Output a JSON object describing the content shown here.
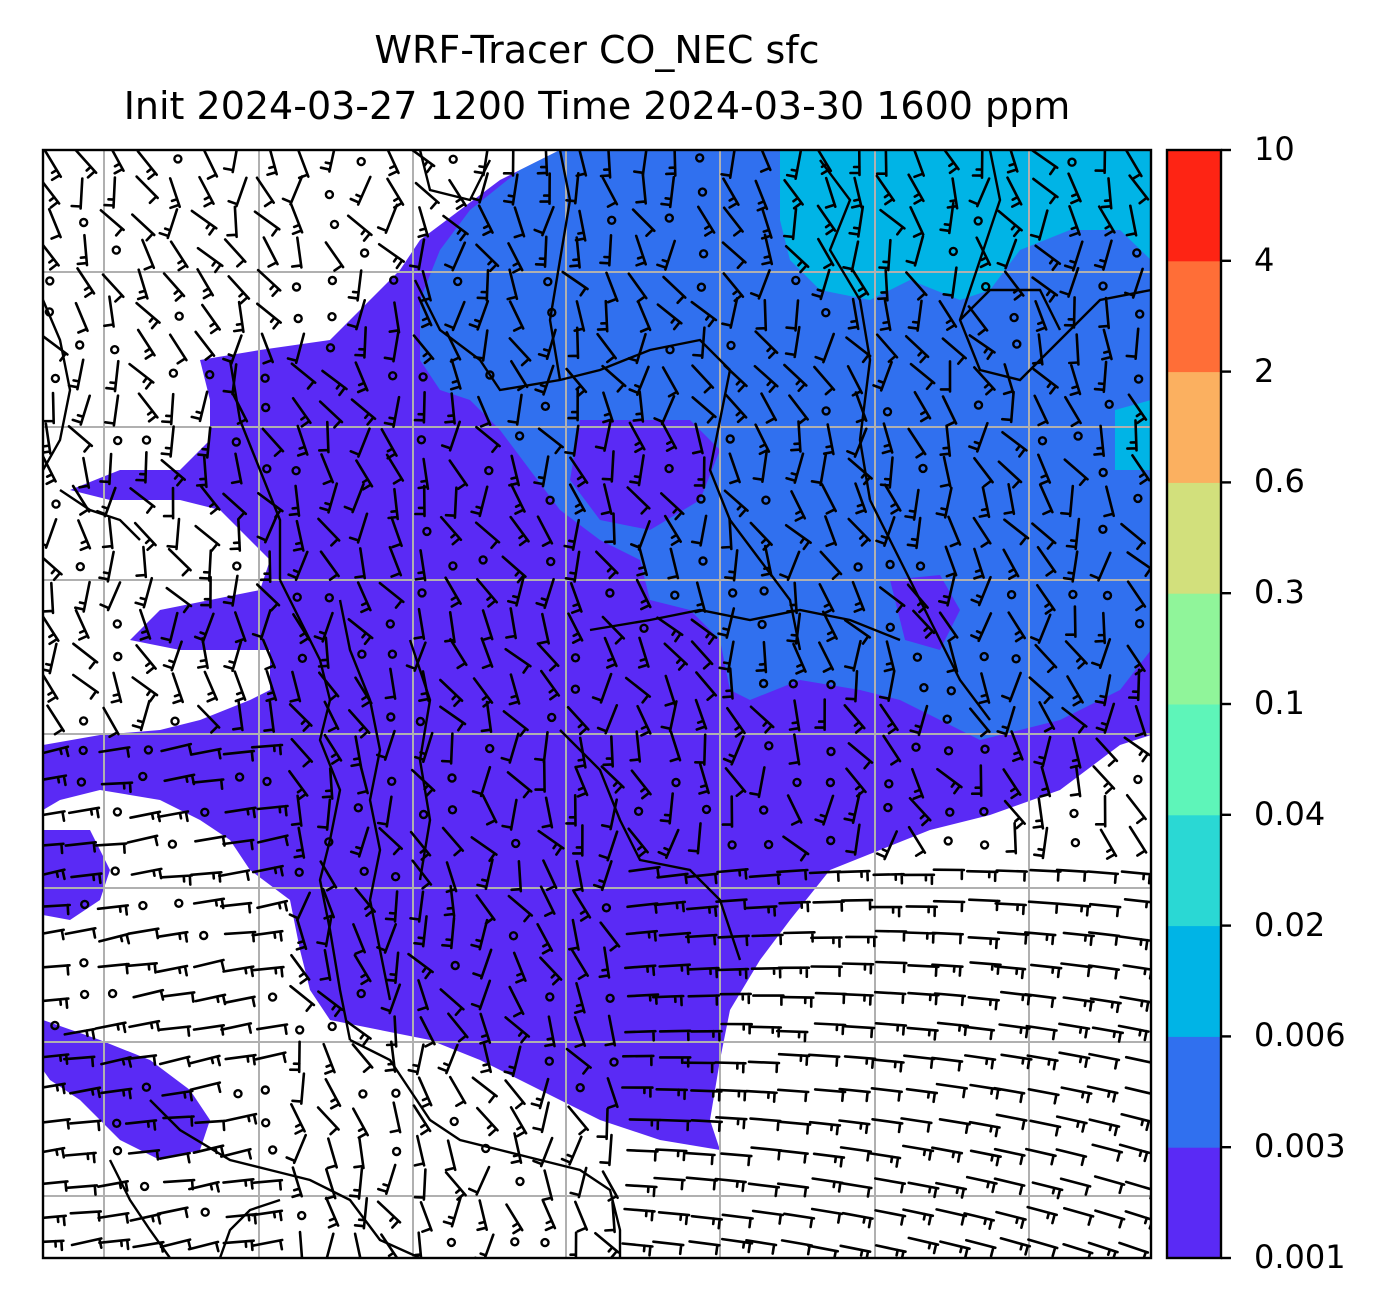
{
  "title": {
    "line1": "WRF-Tracer CO_NEC sfc",
    "line2": "Init 2024-03-27 1200 Time 2024-03-30 1600 ppm"
  },
  "colorbar": {
    "levels": [
      "0.001",
      "0.003",
      "0.006",
      "0.02",
      "0.04",
      "0.1",
      "0.3",
      "0.6",
      "2",
      "4",
      "10"
    ],
    "colors": [
      "#5a2af5",
      "#3070ef",
      "#00b4e6",
      "#2ad8d4",
      "#5ef5b9",
      "#90f59a",
      "#d2e07c",
      "#fbb060",
      "#ff6e37",
      "#fe2414"
    ]
  },
  "map": {
    "field": "CO_NEC",
    "level": "sfc",
    "units": "ppm",
    "gridlines": true,
    "wind_barbs": true
  }
}
